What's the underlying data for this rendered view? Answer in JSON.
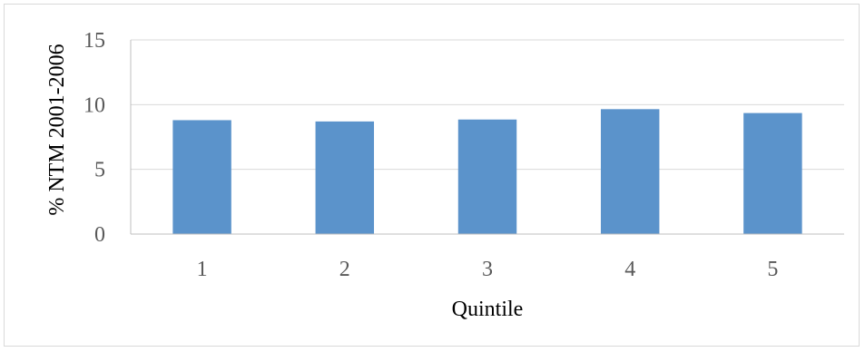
{
  "chart_data": {
    "type": "bar",
    "categories": [
      "1",
      "2",
      "3",
      "4",
      "5"
    ],
    "values": [
      8.8,
      8.7,
      8.85,
      9.65,
      9.35
    ],
    "title": "",
    "xlabel": "Quintile",
    "ylabel": "% NTM 2001-2006",
    "ylim": [
      0,
      15
    ],
    "yticks": [
      "0",
      "5",
      "10",
      "15"
    ],
    "grid": true,
    "legend": "none",
    "colors": {
      "bar": "#5b93cb",
      "grid": "#d9d9d9",
      "axis": "#bfbfbf",
      "tick_text": "#595959"
    }
  }
}
